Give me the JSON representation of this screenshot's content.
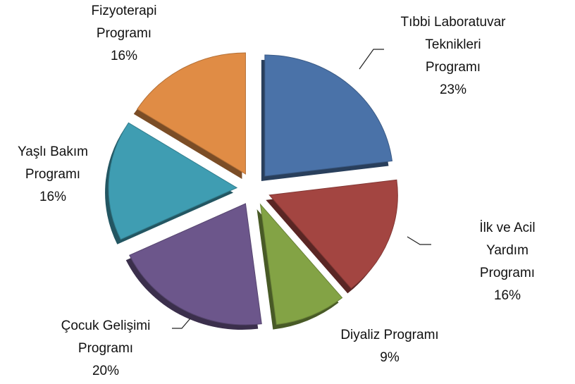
{
  "chart_data": {
    "type": "pie",
    "categories": [
      "Tıbbi Laboratuvar\nTeknikleri\nProgramı",
      "İlk ve Acil Yardım\nProgramı",
      "Diyaliz Programı",
      "Çocuk Gelişimi\nProgramı",
      "Yaşlı Bakım\nProgramı",
      "Fizyoterapi\nProgramı"
    ],
    "values": [
      23,
      16,
      9,
      20,
      16,
      16
    ],
    "value_labels": [
      "23%",
      "16%",
      "9%",
      "20%",
      "16%",
      "16%"
    ],
    "colors": [
      "#4a72a8",
      "#a34541",
      "#83a345",
      "#6c568b",
      "#3f9db2",
      "#e08c45"
    ]
  }
}
